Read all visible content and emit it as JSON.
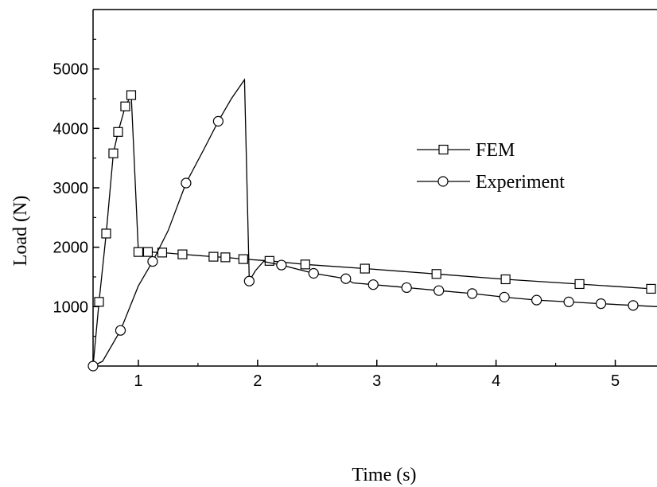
{
  "chart_data": {
    "type": "line",
    "xlabel": "Time (s)",
    "ylabel": "Load (N)",
    "xlim": [
      0.62,
      5.35
    ],
    "ylim": [
      0,
      6000
    ],
    "x_ticks": [
      1,
      2,
      3,
      4,
      5
    ],
    "y_ticks": [
      1000,
      2000,
      3000,
      4000,
      5000
    ],
    "grid": false,
    "legend_position": "right",
    "series": [
      {
        "name": "FEM",
        "marker": "square",
        "points": [
          [
            0.62,
            0
          ],
          [
            0.67,
            1080
          ],
          [
            0.73,
            2230
          ],
          [
            0.79,
            3580
          ],
          [
            0.83,
            3940
          ],
          [
            0.89,
            4370
          ],
          [
            0.94,
            4560
          ],
          [
            1.0,
            1920
          ],
          [
            1.08,
            1920
          ],
          [
            1.2,
            1910
          ],
          [
            1.37,
            1880
          ],
          [
            1.63,
            1840
          ],
          [
            1.73,
            1830
          ],
          [
            1.88,
            1800
          ],
          [
            2.1,
            1770
          ],
          [
            2.4,
            1710
          ],
          [
            2.9,
            1640
          ],
          [
            3.5,
            1550
          ],
          [
            4.08,
            1460
          ],
          [
            4.7,
            1380
          ],
          [
            5.3,
            1300
          ]
        ],
        "markers": [
          [
            0.67,
            1080
          ],
          [
            0.73,
            2230
          ],
          [
            0.79,
            3580
          ],
          [
            0.83,
            3940
          ],
          [
            0.89,
            4370
          ],
          [
            0.94,
            4560
          ],
          [
            1.0,
            1920
          ],
          [
            1.08,
            1920
          ],
          [
            1.2,
            1910
          ],
          [
            1.37,
            1880
          ],
          [
            1.63,
            1840
          ],
          [
            1.73,
            1830
          ],
          [
            1.88,
            1800
          ],
          [
            2.1,
            1770
          ],
          [
            2.4,
            1710
          ],
          [
            2.9,
            1640
          ],
          [
            3.5,
            1550
          ],
          [
            4.08,
            1460
          ],
          [
            4.7,
            1380
          ],
          [
            5.3,
            1300
          ]
        ]
      },
      {
        "name": "Experiment",
        "marker": "circle",
        "points": [
          [
            0.62,
            0
          ],
          [
            0.7,
            80
          ],
          [
            0.85,
            600
          ],
          [
            1.0,
            1350
          ],
          [
            1.12,
            1760
          ],
          [
            1.25,
            2280
          ],
          [
            1.4,
            3080
          ],
          [
            1.55,
            3650
          ],
          [
            1.67,
            4120
          ],
          [
            1.78,
            4500
          ],
          [
            1.89,
            4820
          ],
          [
            1.93,
            1430
          ],
          [
            1.98,
            1600
          ],
          [
            2.05,
            1760
          ],
          [
            2.2,
            1700
          ],
          [
            2.47,
            1560
          ],
          [
            2.74,
            1470
          ],
          [
            2.8,
            1400
          ],
          [
            2.97,
            1370
          ],
          [
            3.25,
            1320
          ],
          [
            3.52,
            1270
          ],
          [
            3.8,
            1220
          ],
          [
            4.07,
            1160
          ],
          [
            4.34,
            1110
          ],
          [
            4.61,
            1080
          ],
          [
            4.88,
            1050
          ],
          [
            5.15,
            1020
          ],
          [
            5.35,
            1000
          ]
        ],
        "markers": [
          [
            0.62,
            0
          ],
          [
            0.85,
            600
          ],
          [
            1.12,
            1760
          ],
          [
            1.4,
            3080
          ],
          [
            1.67,
            4120
          ],
          [
            1.93,
            1430
          ],
          [
            2.2,
            1700
          ],
          [
            2.47,
            1560
          ],
          [
            2.74,
            1470
          ],
          [
            2.97,
            1370
          ],
          [
            3.25,
            1320
          ],
          [
            3.52,
            1270
          ],
          [
            3.8,
            1220
          ],
          [
            4.07,
            1160
          ],
          [
            4.34,
            1110
          ],
          [
            4.61,
            1080
          ],
          [
            4.88,
            1050
          ],
          [
            5.15,
            1020
          ]
        ]
      }
    ]
  }
}
